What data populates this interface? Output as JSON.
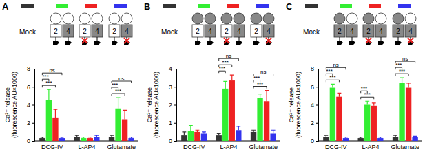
{
  "chart_data": [
    {
      "type": "bar",
      "title": "A",
      "annotations": [
        "Mock",
        "2",
        "4"
      ],
      "y_label": [
        "Ca²⁺ release",
        "(fluorescence AU×1000)"
      ],
      "categories": [
        "DCG-IV",
        "L-AP4",
        "Glutamate"
      ],
      "ylim": [
        0,
        8
      ],
      "yticks": [
        0,
        2,
        4,
        6,
        8
      ],
      "series": [
        {
          "color": "#333333",
          "values": [
            0.3,
            0.4,
            0.4
          ],
          "errors": [
            0.1,
            0.2,
            0.2
          ]
        },
        {
          "color": "#33ee33",
          "values": [
            4.5,
            0.3,
            3.6
          ],
          "errors": [
            1.2,
            0.1,
            1.2
          ]
        },
        {
          "color": "#ee2222",
          "values": [
            2.6,
            0.3,
            2.4
          ],
          "errors": [
            0.9,
            0.1,
            1.0
          ]
        },
        {
          "color": "#3333ee",
          "values": [
            0.3,
            0.4,
            0.3
          ],
          "errors": [
            0.1,
            0.2,
            0.1
          ]
        }
      ],
      "comparisons": [
        {
          "category": 0,
          "series": [
            0,
            2
          ],
          "label": "***"
        },
        {
          "category": 0,
          "series": [
            0,
            1
          ],
          "label": "***"
        },
        {
          "category": 0,
          "series": [
            0,
            3
          ],
          "label": "ns"
        },
        {
          "category": 2,
          "series": [
            0,
            2
          ],
          "label": "***"
        },
        {
          "category": 2,
          "series": [
            0,
            1
          ],
          "label": "***"
        },
        {
          "category": 2,
          "series": [
            0,
            3
          ],
          "label": "ns"
        }
      ]
    },
    {
      "type": "bar",
      "title": "B",
      "annotations": [
        "Mock",
        "2",
        "4"
      ],
      "y_label": [
        "Ca²⁺ release",
        "(fluorescence AU×1000)"
      ],
      "categories": [
        "DCG-IV",
        "L-AP4",
        "Glutamate"
      ],
      "ylim": [
        0,
        4
      ],
      "yticks": [
        0,
        1,
        2,
        3,
        4
      ],
      "series": [
        {
          "color": "#333333",
          "values": [
            0.3,
            0.3,
            0.5
          ],
          "errors": [
            0.2,
            0.1,
            0.1
          ]
        },
        {
          "color": "#33ee33",
          "values": [
            0.55,
            2.9,
            2.4
          ],
          "errors": [
            0.3,
            0.4,
            0.2
          ]
        },
        {
          "color": "#ee2222",
          "values": [
            0.5,
            3.35,
            2.2
          ],
          "errors": [
            0.1,
            0.3,
            0.6
          ]
        },
        {
          "color": "#3333ee",
          "values": [
            0.4,
            0.6,
            0.4
          ],
          "errors": [
            0.1,
            0.2,
            0.2
          ]
        }
      ],
      "comparisons": [
        {
          "category": 1,
          "series": [
            0,
            1
          ],
          "label": "***"
        },
        {
          "category": 1,
          "series": [
            0,
            2
          ],
          "label": "***"
        },
        {
          "category": 1,
          "series": [
            0,
            3
          ],
          "label": "ns"
        },
        {
          "category": 2,
          "series": [
            0,
            2
          ],
          "label": "***"
        },
        {
          "category": 2,
          "series": [
            0,
            1
          ],
          "label": "***"
        },
        {
          "category": 2,
          "series": [
            0,
            3
          ],
          "label": "ns"
        }
      ]
    },
    {
      "type": "bar",
      "title": "C",
      "annotations": [
        "Mock",
        "2",
        "4"
      ],
      "y_label": [
        "Ca²⁺ release",
        "(fluorescence AU×1000)"
      ],
      "categories": [
        "DCG-IV",
        "L-AP4",
        "Glutamate"
      ],
      "ylim": [
        0,
        8
      ],
      "yticks": [
        0,
        2,
        4,
        6,
        8
      ],
      "series": [
        {
          "color": "#333333",
          "values": [
            0.4,
            0.3,
            0.4
          ],
          "errors": [
            0.2,
            0.1,
            0.2
          ]
        },
        {
          "color": "#33ee33",
          "values": [
            5.9,
            4.0,
            6.4
          ],
          "errors": [
            0.4,
            0.4,
            0.6
          ]
        },
        {
          "color": "#ee2222",
          "values": [
            4.9,
            3.9,
            5.9
          ],
          "errors": [
            0.4,
            0.3,
            0.5
          ]
        },
        {
          "color": "#3333ee",
          "values": [
            0.3,
            0.3,
            0.4
          ],
          "errors": [
            0.1,
            0.1,
            0.1
          ]
        }
      ],
      "comparisons": [
        {
          "category": 0,
          "series": [
            0,
            2
          ],
          "label": "***"
        },
        {
          "category": 0,
          "series": [
            0,
            1
          ],
          "label": "***"
        },
        {
          "category": 0,
          "series": [
            0,
            3
          ],
          "label": "ns"
        },
        {
          "category": 1,
          "series": [
            0,
            2
          ],
          "label": "***"
        },
        {
          "category": 1,
          "series": [
            0,
            1
          ],
          "label": "***"
        },
        {
          "category": 2,
          "series": [
            0,
            2
          ],
          "label": "***"
        },
        {
          "category": 2,
          "series": [
            0,
            1
          ],
          "label": "***"
        },
        {
          "category": 2,
          "series": [
            0,
            3
          ],
          "label": "ns"
        }
      ]
    }
  ]
}
